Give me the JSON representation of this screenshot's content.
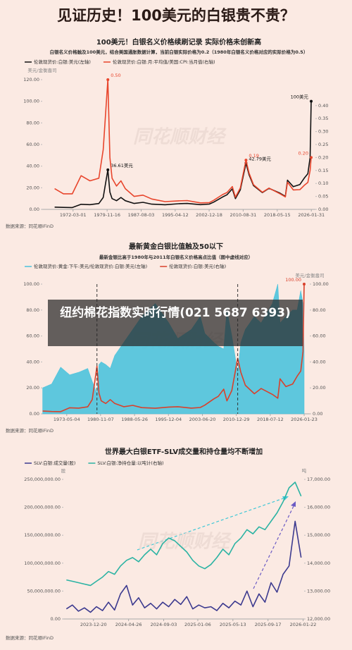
{
  "title": "见证历史！100美元的白银贵不贵？",
  "overlay_caption": "纽约棉花指数实时行情(021 5687 6393)",
  "watermark": "同花顺财经",
  "chart_data": [
    {
      "type": "line",
      "title": "100美元！白银名义价格续刷记录 实际价格未创新高",
      "subtitle": "白银名义价格触及100美元，结合美国通胀数据计算，当前白银实际价格为0.2（1980年白银名义价格对应的实际价格为0.5）",
      "y_unit": "美元/金衡盎司",
      "source": "数据来源：同花顺iFinD",
      "xlim": [
        1965.2,
        2027
      ],
      "xticks": [
        {
          "value": 1972.17,
          "label": "1972-03-01"
        },
        {
          "value": 1979.88,
          "label": "1979-11-16"
        },
        {
          "value": 1987.58,
          "label": "1987-08-03"
        },
        {
          "value": 1995.28,
          "label": "1995-04-12"
        },
        {
          "value": 2002.96,
          "label": "2002-12-18"
        },
        {
          "value": 2010.66,
          "label": "2010-08-31"
        },
        {
          "value": 2018.37,
          "label": "2018-05-15"
        },
        {
          "value": 2026.08,
          "label": "2026-01-31"
        }
      ],
      "ylim": [
        0,
        120
      ],
      "yticks": [
        {
          "value": 0,
          "label": "0.00"
        },
        {
          "value": 20,
          "label": "20.00"
        },
        {
          "value": 40,
          "label": "40.00"
        },
        {
          "value": 60,
          "label": "60.00"
        },
        {
          "value": 80,
          "label": "80.00"
        },
        {
          "value": 100,
          "label": "100.00"
        },
        {
          "value": 120,
          "label": "120.00"
        }
      ],
      "y2lim": [
        0,
        0.5
      ],
      "y2ticks": [
        {
          "value": 0,
          "label": "0.00"
        },
        0.05,
        {
          "value": 0.1,
          "label": "0.10"
        },
        0.15,
        {
          "value": 0.2,
          "label": "0.20"
        },
        0.25,
        {
          "value": 0.3,
          "label": "0.30"
        },
        0.35,
        {
          "value": 0.4,
          "label": "0.40"
        }
      ],
      "x": [
        1968,
        1970,
        1972,
        1974,
        1976,
        1978,
        1979,
        1980.05,
        1980.5,
        1981,
        1982,
        1983,
        1984,
        1986,
        1988,
        1990,
        1993,
        1996,
        1998,
        2001,
        2003,
        2004,
        2006,
        2007,
        2008.2,
        2008.9,
        2010,
        2011.3,
        2012,
        2013,
        2015,
        2016.5,
        2019,
        2020.2,
        2020.7,
        2022,
        2023.5,
        2024.5,
        2025.3,
        2025.8,
        2026.05
      ],
      "series": [
        {
          "name": "伦敦现货价:白银:美元(左轴)",
          "color": "#111111",
          "values": [
            2.1,
            1.8,
            1.7,
            4.7,
            4.4,
            5.4,
            11,
            36.61,
            16,
            10,
            8,
            11,
            8,
            5.5,
            6.5,
            4.8,
            4.3,
            5.2,
            5.5,
            4.4,
            4.9,
            6.7,
            11.5,
            13.5,
            19,
            10,
            18,
            42.79,
            32,
            22,
            15.5,
            19.5,
            15,
            12,
            27,
            21,
            23,
            29,
            33,
            48,
            100
          ],
          "value_labels": [
            null,
            null,
            null,
            null,
            null,
            null,
            null,
            "36.61美元",
            null,
            null,
            null,
            null,
            null,
            null,
            null,
            null,
            null,
            null,
            null,
            null,
            null,
            null,
            null,
            null,
            null,
            null,
            null,
            "42.79美元",
            null,
            null,
            null,
            null,
            null,
            null,
            null,
            null,
            null,
            null,
            null,
            null,
            "100美元"
          ]
        },
        {
          "name": "伦敦现货价:白银:月:平均值/美国:CPI:当月值(右轴)",
          "color": "#e8452c",
          "axis": "y2",
          "values": [
            0.08,
            0.06,
            0.06,
            0.13,
            0.11,
            0.12,
            0.23,
            0.5,
            0.2,
            0.12,
            0.09,
            0.11,
            0.08,
            0.05,
            0.055,
            0.04,
            0.03,
            0.033,
            0.034,
            0.025,
            0.026,
            0.035,
            0.057,
            0.065,
            0.088,
            0.047,
            0.082,
            0.19,
            0.14,
            0.095,
            0.066,
            0.082,
            0.06,
            0.048,
            0.105,
            0.075,
            0.076,
            0.093,
            0.104,
            0.15,
            0.2
          ],
          "value_labels": [
            null,
            null,
            null,
            null,
            null,
            null,
            null,
            "0.50",
            null,
            null,
            null,
            null,
            null,
            null,
            null,
            null,
            null,
            null,
            null,
            null,
            null,
            null,
            null,
            null,
            null,
            null,
            null,
            "0.19",
            null,
            null,
            null,
            null,
            null,
            null,
            null,
            null,
            null,
            null,
            null,
            null,
            "0.20"
          ]
        }
      ]
    },
    {
      "type": "line",
      "title": "最新黄金白银比值触及50以下",
      "subtitle": "最新金银比高于1980年与2011年白银名义价格高点比值（图中虚线对应）",
      "y2_unit": "美元/金衡盎司",
      "source": "数据来源：同花顺iFinD",
      "xlim": [
        1967.9,
        2027.3
      ],
      "xticks": [
        {
          "value": 1973.34,
          "label": "1973-05-04"
        },
        {
          "value": 1980.85,
          "label": "1980-11-07"
        },
        {
          "value": 1988.4,
          "label": "1988-05-26"
        },
        {
          "value": 1995.92,
          "label": "1995-12-04"
        },
        {
          "value": 2003.47,
          "label": "2003-06-20"
        },
        {
          "value": 2010.99,
          "label": "2010-12-29"
        },
        {
          "value": 2018.53,
          "label": "2018-07-12"
        },
        {
          "value": 2026.06,
          "label": "2026-01-23"
        }
      ],
      "ylim": [
        0,
        100
      ],
      "yticks": [
        {
          "value": 0,
          "label": "0.00"
        },
        {
          "value": 20,
          "label": "20.00"
        },
        {
          "value": 40,
          "label": "40.00"
        },
        {
          "value": 60,
          "label": "60.00"
        },
        {
          "value": 80,
          "label": "80.00"
        },
        {
          "value": 100,
          "label": "100.00"
        }
      ],
      "y2lim": [
        0,
        100
      ],
      "y2ticks": [
        {
          "value": 0,
          "label": "0.00"
        },
        {
          "value": 20,
          "label": "20.00"
        },
        {
          "value": 40,
          "label": "40.00"
        },
        {
          "value": 60,
          "label": "60.00"
        },
        {
          "value": 80,
          "label": "80.00"
        },
        {
          "value": 100,
          "label": "100.00"
        }
      ],
      "vlines": [
        1980.05,
        2011.3
      ],
      "x": [
        1968,
        1970,
        1972,
        1974,
        1976,
        1978,
        1979,
        1980.05,
        1980.5,
        1981,
        1982,
        1983,
        1984,
        1986,
        1988,
        1990,
        1993,
        1996,
        1998,
        2001,
        2003,
        2004,
        2006,
        2007,
        2008.2,
        2008.9,
        2010,
        2011.3,
        2012,
        2013,
        2015,
        2016.5,
        2019,
        2020.2,
        2020.7,
        2022,
        2023.5,
        2024.5,
        2025.3,
        2025.8,
        2026.05
      ],
      "series": [
        {
          "name": "伦敦现货价:黄金:下午:美元/伦敦现货价:白银:美元(左轴)",
          "color": "#4cc3dc",
          "style": "area",
          "values": [
            20,
            23,
            36,
            30,
            32,
            35,
            25,
            16,
            38,
            40,
            38,
            35,
            45,
            55,
            65,
            75,
            85,
            70,
            58,
            65,
            75,
            62,
            55,
            52,
            50,
            80,
            60,
            32,
            55,
            65,
            75,
            70,
            85,
            100,
            70,
            75,
            80,
            80,
            95,
            85,
            48
          ]
        },
        {
          "name": "伦敦现货价:白银:美元(右轴)",
          "color": "#d9402b",
          "axis": "y2",
          "values": [
            2.1,
            1.8,
            1.7,
            4.7,
            4.4,
            5.4,
            11,
            36.61,
            16,
            10,
            8,
            11,
            8,
            5.5,
            6.5,
            4.8,
            4.3,
            5.2,
            5.5,
            4.4,
            4.9,
            6.7,
            11.5,
            13.5,
            19,
            10,
            18,
            42.79,
            32,
            22,
            15.5,
            19.5,
            15,
            12,
            27,
            21,
            23,
            29,
            33,
            48,
            100
          ],
          "value_labels": [
            null,
            null,
            null,
            null,
            null,
            null,
            null,
            null,
            null,
            null,
            null,
            null,
            null,
            null,
            null,
            null,
            null,
            null,
            null,
            null,
            null,
            null,
            null,
            null,
            null,
            null,
            null,
            null,
            null,
            null,
            null,
            null,
            null,
            null,
            null,
            null,
            null,
            null,
            null,
            null,
            "100.00"
          ]
        }
      ]
    },
    {
      "type": "line",
      "title": "世界最大白银ETF-SLV成交量和持仓量均不断增加",
      "y_unit": "股",
      "y2_unit": "吨",
      "source": "数据来源：同花顺iFinD",
      "xlim": [
        2023.67,
        2026.07
      ],
      "xticks": [
        {
          "value": 2023.97,
          "label": "2023-12-20"
        },
        {
          "value": 2024.32,
          "label": "2024-04-26"
        },
        {
          "value": 2024.67,
          "label": "2024-09-03"
        },
        {
          "value": 2025.01,
          "label": "2025-01-06"
        },
        {
          "value": 2025.36,
          "label": "2025-05-13"
        },
        {
          "value": 2025.71,
          "label": "2025-09-17"
        },
        {
          "value": 2026.06,
          "label": "2026-01-22"
        }
      ],
      "ylim": [
        0,
        250000000
      ],
      "yticks": [
        {
          "value": 0,
          "label": "0.00"
        },
        {
          "value": 50000000,
          "label": "50,000,000.00"
        },
        {
          "value": 100000000,
          "label": "100,000,000.00"
        },
        {
          "value": 150000000,
          "label": "150,000,000.00"
        },
        {
          "value": 200000000,
          "label": "200,000,000.00"
        },
        {
          "value": 250000000,
          "label": "250,000,000.00"
        }
      ],
      "y2lim": [
        12000,
        17000
      ],
      "y2ticks": [
        {
          "value": 12000,
          "label": "12,000.00"
        },
        {
          "value": 13000,
          "label": "13,000.00"
        },
        {
          "value": 14000,
          "label": "14,000.00"
        },
        {
          "value": 15000,
          "label": "15,000.00"
        },
        {
          "value": 16000,
          "label": "16,000.00"
        },
        {
          "value": 17000,
          "label": "17,000.00"
        }
      ],
      "x": [
        2023.7,
        2023.76,
        2023.82,
        2023.88,
        2023.94,
        2024.0,
        2024.06,
        2024.12,
        2024.18,
        2024.24,
        2024.3,
        2024.36,
        2024.42,
        2024.48,
        2024.54,
        2024.6,
        2024.66,
        2024.72,
        2024.78,
        2024.84,
        2024.9,
        2024.96,
        2025.02,
        2025.08,
        2025.14,
        2025.2,
        2025.26,
        2025.32,
        2025.38,
        2025.44,
        2025.5,
        2025.56,
        2025.62,
        2025.68,
        2025.74,
        2025.8,
        2025.86,
        2025.92,
        2025.98,
        2026.04
      ],
      "series": [
        {
          "name": "SLV:白银:成交量(股)",
          "color": "#3c3a8f",
          "values": [
            18000000,
            25000000,
            14000000,
            20000000,
            12000000,
            22000000,
            15000000,
            30000000,
            16000000,
            45000000,
            60000000,
            25000000,
            38000000,
            20000000,
            28000000,
            18000000,
            30000000,
            22000000,
            35000000,
            26000000,
            40000000,
            18000000,
            25000000,
            20000000,
            22000000,
            15000000,
            28000000,
            20000000,
            32000000,
            25000000,
            50000000,
            22000000,
            45000000,
            30000000,
            65000000,
            48000000,
            80000000,
            95000000,
            175000000,
            110000000
          ]
        },
        {
          "name": "SLV:白银:净持仓量:以吨计(右轴)",
          "color": "#2bb3a3",
          "axis": "y2",
          "values": [
            13400,
            13350,
            13300,
            13250,
            13200,
            13350,
            13500,
            13700,
            13600,
            13900,
            14100,
            14200,
            14050,
            14300,
            14500,
            14300,
            14700,
            14900,
            14800,
            14600,
            14400,
            14100,
            13900,
            13800,
            13950,
            14200,
            14500,
            14300,
            14700,
            14900,
            15200,
            15050,
            15300,
            15200,
            15500,
            15800,
            16200,
            16700,
            16900,
            16400
          ]
        }
      ]
    }
  ]
}
